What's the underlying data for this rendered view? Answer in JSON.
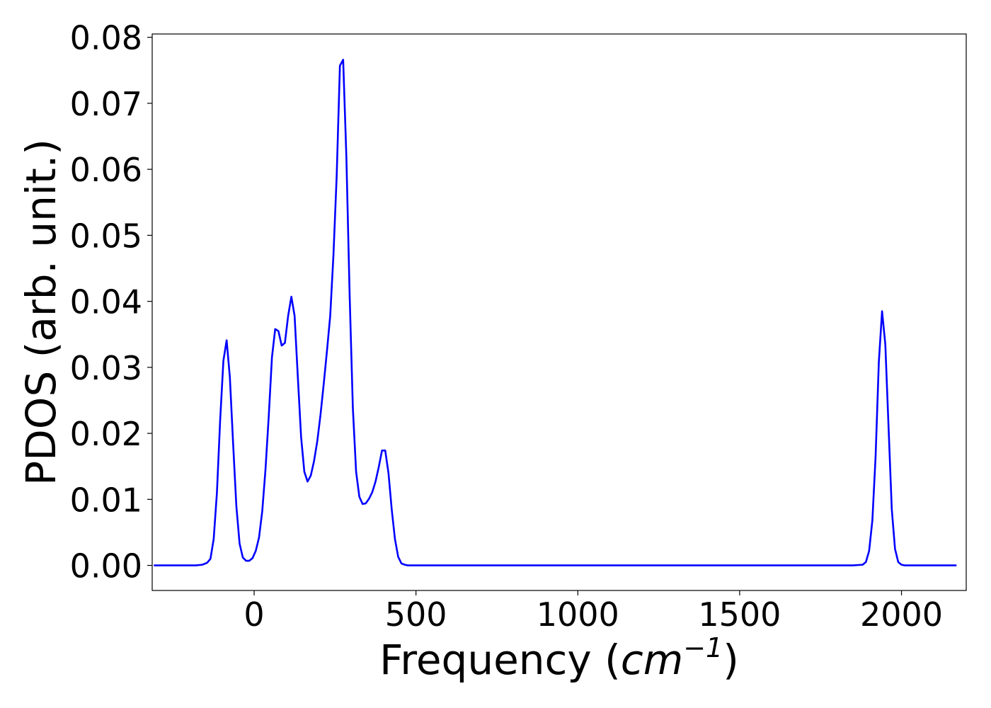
{
  "chart_data": {
    "type": "line",
    "title": "",
    "xlabel_prefix": "Frequency (",
    "xlabel_unit_base": "cm",
    "xlabel_unit_exp": "−1",
    "xlabel_suffix": ")",
    "ylabel": "PDOS (arb. unit.)",
    "xlim": [
      -315,
      2200
    ],
    "ylim": [
      -0.0038,
      0.0805
    ],
    "xticks": [
      0,
      500,
      1000,
      1500,
      2000
    ],
    "xtick_labels": [
      "0",
      "500",
      "1000",
      "1500",
      "2000"
    ],
    "yticks": [
      0.0,
      0.01,
      0.02,
      0.03,
      0.04,
      0.05,
      0.06,
      0.07,
      0.08
    ],
    "ytick_labels": [
      "0.00",
      "0.01",
      "0.02",
      "0.03",
      "0.04",
      "0.05",
      "0.06",
      "0.07",
      "0.08"
    ],
    "grid": false,
    "series": [
      {
        "color": "#0000ff",
        "x": [
          -310,
          -180,
          -160,
          -145,
          -135,
          -125,
          -115,
          -105,
          -95,
          -85,
          -75,
          -65,
          -55,
          -45,
          -35,
          -25,
          -15,
          -5,
          5,
          15,
          25,
          35,
          45,
          55,
          65,
          75,
          85,
          95,
          105,
          115,
          125,
          135,
          145,
          155,
          165,
          175,
          185,
          195,
          205,
          215,
          225,
          235,
          245,
          255,
          265,
          275,
          285,
          295,
          305,
          315,
          325,
          335,
          345,
          355,
          365,
          375,
          385,
          395,
          405,
          415,
          425,
          435,
          445,
          455,
          465,
          475,
          485,
          495,
          505,
          515,
          525,
          535,
          545,
          555,
          565,
          575,
          585,
          600,
          650,
          1000,
          1500,
          1850,
          1880,
          1890,
          1900,
          1910,
          1920,
          1930,
          1940,
          1950,
          1960,
          1970,
          1980,
          1990,
          2000,
          2010,
          2020,
          2030,
          2040,
          2100,
          2170
        ],
        "y": [
          0.0,
          0.0,
          0.0001,
          0.0004,
          0.001,
          0.004,
          0.011,
          0.022,
          0.031,
          0.0341,
          0.0285,
          0.0185,
          0.009,
          0.0033,
          0.0012,
          0.0007,
          0.0007,
          0.0011,
          0.0022,
          0.0042,
          0.0082,
          0.0145,
          0.0225,
          0.0315,
          0.0358,
          0.0355,
          0.0333,
          0.0337,
          0.0378,
          0.0407,
          0.0378,
          0.0285,
          0.0195,
          0.0142,
          0.0127,
          0.0136,
          0.0158,
          0.0188,
          0.0228,
          0.0275,
          0.0325,
          0.0378,
          0.047,
          0.059,
          0.0757,
          0.0766,
          0.0618,
          0.041,
          0.0238,
          0.0142,
          0.0104,
          0.0093,
          0.0094,
          0.0101,
          0.0111,
          0.0127,
          0.0149,
          0.0174,
          0.0174,
          0.014,
          0.0085,
          0.004,
          0.0013,
          0.0003,
          0.0001,
          0.0,
          0.0,
          0.0,
          0.0,
          0.0,
          0.0,
          0.0,
          0.0,
          0.0,
          0.0,
          0.0,
          0.0,
          0.0,
          0.0,
          0.0,
          0.0,
          0.0,
          0.0001,
          0.0005,
          0.0022,
          0.0068,
          0.0165,
          0.0308,
          0.0385,
          0.0335,
          0.021,
          0.0085,
          0.0025,
          0.0005,
          0.0001,
          0.0,
          0.0,
          0.0,
          0.0,
          0.0,
          0.0
        ]
      }
    ]
  }
}
